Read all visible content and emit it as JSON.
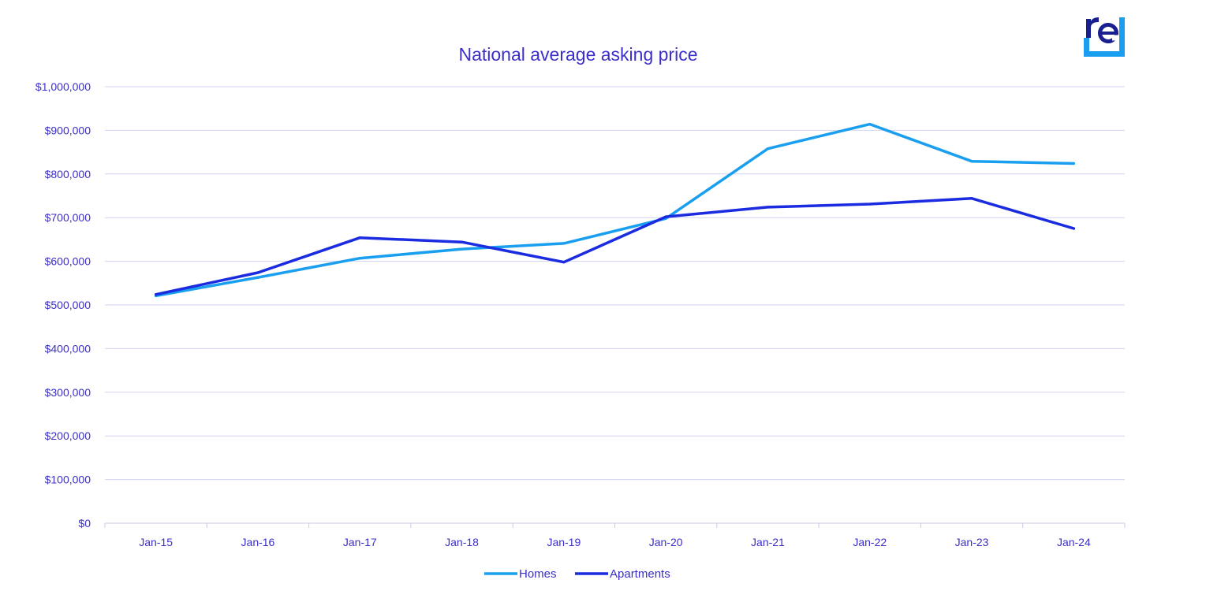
{
  "chart_data": {
    "type": "line",
    "title": "National average asking price",
    "xlabel": "",
    "ylabel": "",
    "categories": [
      "Jan-15",
      "Jan-16",
      "Jan-17",
      "Jan-18",
      "Jan-19",
      "Jan-20",
      "Jan-21",
      "Jan-22",
      "Jan-23",
      "Jan-24"
    ],
    "ylim": [
      0,
      1000000
    ],
    "yticks": [
      0,
      100000,
      200000,
      300000,
      400000,
      500000,
      600000,
      700000,
      800000,
      900000,
      1000000
    ],
    "ytick_labels": [
      "$0",
      "$100,000",
      "$200,000",
      "$300,000",
      "$400,000",
      "$500,000",
      "$600,000",
      "$700,000",
      "$800,000",
      "$900,000",
      "$1,000,000"
    ],
    "grid": true,
    "legend_position": "bottom",
    "series": [
      {
        "name": "Homes",
        "color": "#1a9ff0",
        "values": [
          521000,
          563000,
          607000,
          628000,
          641000,
          698000,
          858000,
          914000,
          829000,
          824000
        ]
      },
      {
        "name": "Apartments",
        "color": "#1a2be0",
        "values": [
          524000,
          574000,
          654000,
          644000,
          598000,
          702000,
          724000,
          731000,
          744000,
          675000
        ]
      }
    ]
  },
  "logo": {
    "icon": "re-logo-icon",
    "text": "re",
    "color_dark": "#1a1f8f",
    "color_light": "#1a9ff0"
  }
}
